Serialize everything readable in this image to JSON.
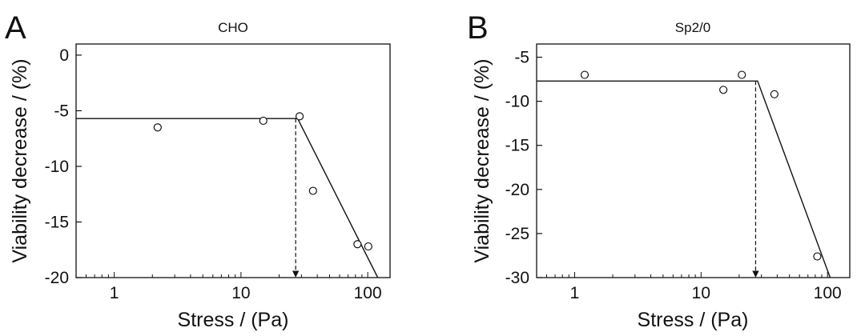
{
  "panels": [
    {
      "letter": "A",
      "title": "CHO"
    },
    {
      "letter": "B",
      "title": "Sp2/0"
    }
  ],
  "colors": {
    "ink": "#111111",
    "background": "#ffffff"
  },
  "chart_data": [
    {
      "type": "scatter",
      "title": "CHO",
      "xlabel": "Stress / (Pa)",
      "ylabel": "Viability decrease / (%)",
      "xscale": "log",
      "xlim": [
        0.5,
        150
      ],
      "ylim": [
        -20,
        1
      ],
      "xticks": [
        1,
        10,
        100
      ],
      "xtick_labels": [
        "1",
        "10",
        "100"
      ],
      "yticks": [
        0,
        -5,
        -10,
        -15,
        -20
      ],
      "ytick_labels": [
        "0",
        "-5",
        "-10",
        "-15",
        "-20"
      ],
      "grid": false,
      "points": [
        {
          "x": 2.2,
          "y": -6.5
        },
        {
          "x": 15,
          "y": -5.9
        },
        {
          "x": 29,
          "y": -5.5
        },
        {
          "x": 37,
          "y": -12.2
        },
        {
          "x": 83,
          "y": -17.0
        },
        {
          "x": 101,
          "y": -17.2
        }
      ],
      "fit_line": [
        {
          "x": 0.5,
          "y": -5.7
        },
        {
          "x": 28,
          "y": -5.7
        },
        {
          "x": 120,
          "y": -20
        }
      ],
      "marker": {
        "x": 27,
        "y_from": -5.7,
        "y_to": -20,
        "style": "dashed-arrow"
      }
    },
    {
      "type": "scatter",
      "title": "Sp2/0",
      "xlabel": "Stress / (Pa)",
      "ylabel": "Viability decrease / (%)",
      "xscale": "log",
      "xlim": [
        0.5,
        150
      ],
      "ylim": [
        -30,
        -3.5
      ],
      "xticks": [
        1,
        10,
        100
      ],
      "xtick_labels": [
        "1",
        "10",
        "100"
      ],
      "yticks": [
        -5,
        -10,
        -15,
        -20,
        -25,
        -30
      ],
      "ytick_labels": [
        "-5",
        "-10",
        "-15",
        "-20",
        "-25",
        "-30"
      ],
      "grid": false,
      "points": [
        {
          "x": 1.2,
          "y": -7.0
        },
        {
          "x": 15,
          "y": -8.7
        },
        {
          "x": 21,
          "y": -7.0
        },
        {
          "x": 38,
          "y": -9.2
        },
        {
          "x": 83,
          "y": -27.6
        }
      ],
      "fit_line": [
        {
          "x": 0.5,
          "y": -7.7
        },
        {
          "x": 28,
          "y": -7.7
        },
        {
          "x": 105,
          "y": -30
        }
      ],
      "marker": {
        "x": 27,
        "y_from": -7.7,
        "y_to": -30,
        "style": "dashed-arrow"
      }
    }
  ]
}
